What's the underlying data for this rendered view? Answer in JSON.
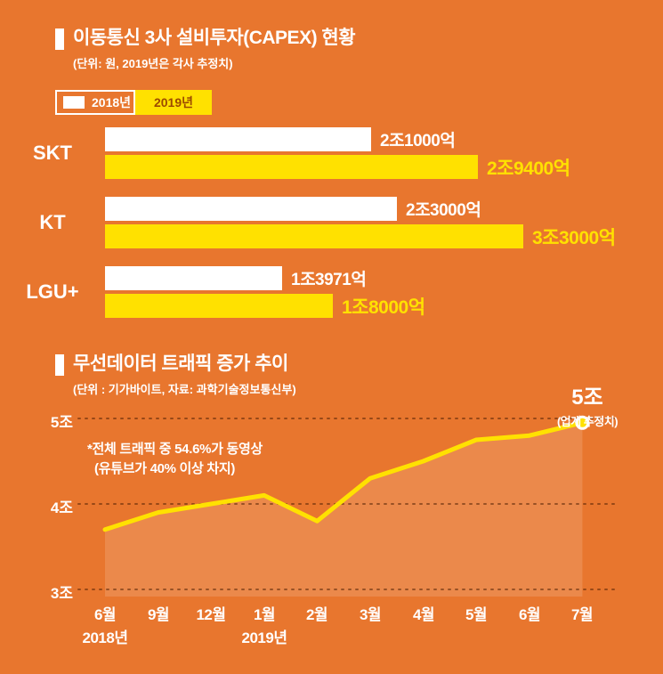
{
  "theme": {
    "background": "#E8762E",
    "accent_yellow": "#FFE100",
    "white": "#FFFFFF",
    "legend_text_dark": "#9C4A00",
    "grid_color": "rgba(70,25,0,0.5)",
    "area_fill": "rgba(255,255,255,0.14)"
  },
  "capex_section": {
    "title": "이동통신 3사 설비투자(CAPEX) 현황",
    "subtitle": "(단위: 원, 2019년은 각사 추정치)",
    "legend": [
      {
        "label": "2018년",
        "swatch": "white-outline"
      },
      {
        "label": "2019년",
        "swatch": "yellow-solid"
      }
    ]
  },
  "traffic_section": {
    "title": "무선데이터 트래픽 증가 추이",
    "subtitle": "(단위 : 기가바이트, 자료: 과학기술정보통신부)",
    "annotation_line1": "*전체 트래픽 중 54.6%가 동영상",
    "annotation_line2": "(유튜브가 40% 이상 차지)",
    "endpoint_value": "5조",
    "endpoint_note": "(업계 추정치)"
  },
  "chart_data": [
    {
      "type": "bar",
      "orientation": "horizontal",
      "title": "이동통신 3사 설비투자(CAPEX) 현황",
      "unit": "조 원",
      "categories": [
        "SKT",
        "KT",
        "LGU+"
      ],
      "series": [
        {
          "name": "2018년",
          "color": "#FFFFFF",
          "values": [
            2.1,
            2.3,
            1.3971
          ],
          "value_labels": [
            "2조1000억",
            "2조3000억",
            "1조3971억"
          ]
        },
        {
          "name": "2019년",
          "color": "#FFE100",
          "values": [
            2.94,
            3.3,
            1.8
          ],
          "value_labels": [
            "2조9400억",
            "3조3000억",
            "1조8000억"
          ]
        }
      ],
      "xlim": [
        0,
        3.3
      ],
      "legend_position": "top-left"
    },
    {
      "type": "area",
      "title": "무선데이터 트래픽 증가 추이",
      "x": [
        "6월",
        "9월",
        "12월",
        "1월",
        "2월",
        "3월",
        "4월",
        "5월",
        "6월",
        "7월"
      ],
      "x_year_labels": [
        {
          "index": 0,
          "label": "2018년"
        },
        {
          "index": 3,
          "label": "2019년"
        }
      ],
      "values": [
        3.7,
        3.9,
        4.0,
        4.1,
        3.8,
        4.3,
        4.5,
        4.75,
        4.8,
        4.95
      ],
      "unit": "조",
      "ylim": [
        3,
        5.2
      ],
      "yticks": [
        {
          "value": 3,
          "label": "3조"
        },
        {
          "value": 4,
          "label": "4조"
        },
        {
          "value": 5,
          "label": "5조"
        }
      ],
      "grid": "dashed-horizontal",
      "line_color": "#FFE100",
      "endpoint_label": "5조 (업계 추정치)"
    }
  ]
}
